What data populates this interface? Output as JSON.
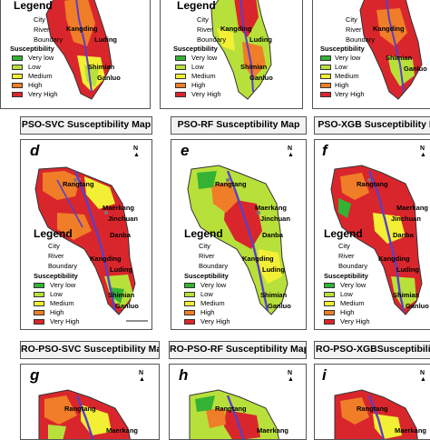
{
  "colors": {
    "very_low": "#34b233",
    "low": "#b8e03a",
    "medium": "#f2ef35",
    "high": "#f07d27",
    "very_high": "#d9262c",
    "river": "#5b3fc4"
  },
  "legend": {
    "title": "Legend",
    "city": "City",
    "river": "River",
    "boundary": "Boundary",
    "susceptibility": "Susceptibility",
    "classes": [
      "Very low",
      "Low",
      "Medium",
      "High",
      "Very High"
    ]
  },
  "places": {
    "rangtang": "Rangtang",
    "maerkang": "Maerkang",
    "jinchuan": "Jinchuan",
    "danba": "Danba",
    "kangding": "Kangding",
    "luding": "Luding",
    "shimian": "Shimian",
    "ganluo": "Ganluo"
  },
  "panels": {
    "d": {
      "letter": "d",
      "title": "PSO-SVC Susceptibility Map"
    },
    "e": {
      "letter": "e",
      "title": "PSO-RF Susceptibility Map"
    },
    "f": {
      "letter": "f",
      "title": "PSO-XGB Susceptibility M"
    },
    "g": {
      "letter": "g",
      "title": "RO-PSO-SVC Susceptibility Map"
    },
    "h": {
      "letter": "h",
      "title": "RO-PSO-RF Susceptibility Map"
    },
    "i": {
      "letter": "i",
      "title": "RO-PSO-XGBSusceptibility"
    }
  }
}
